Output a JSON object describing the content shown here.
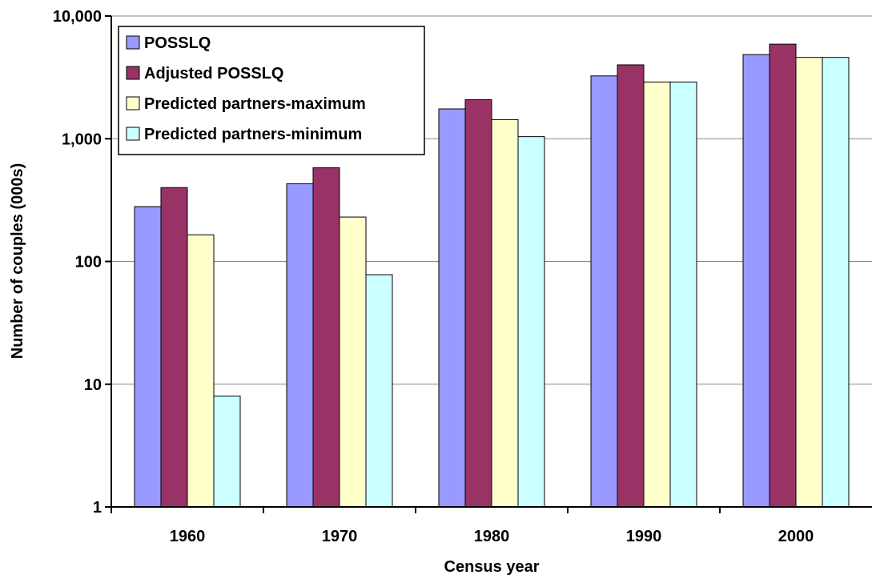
{
  "chart_data": {
    "type": "bar",
    "yscale": "log",
    "ylim": [
      1,
      10000
    ],
    "yticks": [
      1,
      10,
      100,
      1000,
      10000
    ],
    "ytick_labels": [
      "1",
      "10",
      "100",
      "1,000",
      "10,000"
    ],
    "xlabel": "Census year",
    "ylabel": "Number of couples (000s)",
    "categories": [
      "1960",
      "1970",
      "1980",
      "1990",
      "2000"
    ],
    "grid": true,
    "legend_position": "top-left",
    "series": [
      {
        "name": "POSSLQ",
        "color": "#9999ff",
        "values": [
          280,
          430,
          1750,
          3250,
          4850
        ]
      },
      {
        "name": "Adjusted POSSLQ",
        "color": "#993366",
        "values": [
          400,
          580,
          2080,
          4000,
          5900
        ]
      },
      {
        "name": "Predicted partners-maximum",
        "color": "#ffffcc",
        "values": [
          165,
          230,
          1430,
          2900,
          4600
        ]
      },
      {
        "name": "Predicted partners-minimum",
        "color": "#ccffff",
        "values": [
          8,
          78,
          1040,
          2900,
          4600
        ]
      }
    ]
  }
}
